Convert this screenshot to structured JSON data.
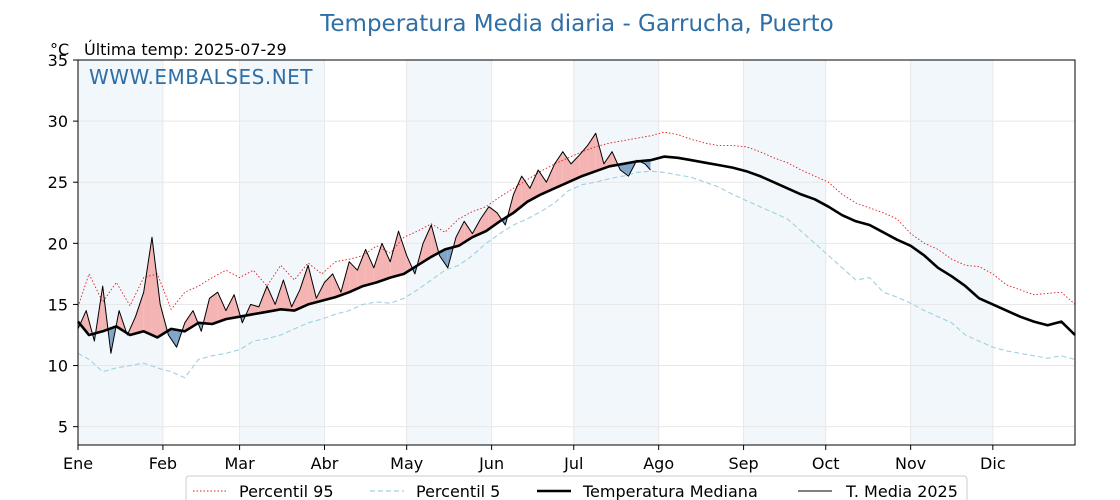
{
  "chart_data": {
    "type": "line",
    "title": "Temperatura Media diaria - Garrucha, Puerto",
    "unit_label": "°C",
    "last_temp_label": "Última temp: 2025-07-29",
    "watermark": "WWW.EMBALSES.NET",
    "x_axis_type": "day_of_year",
    "xlim": [
      1,
      365
    ],
    "ylim": [
      3.5,
      35
    ],
    "y_ticks": [
      5,
      10,
      15,
      20,
      25,
      30,
      35
    ],
    "x_ticks": [
      {
        "label": "Ene",
        "day": 1
      },
      {
        "label": "Feb",
        "day": 32
      },
      {
        "label": "Mar",
        "day": 60
      },
      {
        "label": "Abr",
        "day": 91
      },
      {
        "label": "May",
        "day": 121
      },
      {
        "label": "Jun",
        "day": 152
      },
      {
        "label": "Jul",
        "day": 182
      },
      {
        "label": "Ago",
        "day": 213
      },
      {
        "label": "Sep",
        "day": 244
      },
      {
        "label": "Oct",
        "day": 274
      },
      {
        "label": "Nov",
        "day": 305
      },
      {
        "label": "Dic",
        "day": 335
      }
    ],
    "shaded_month_bands": [
      [
        1,
        32
      ],
      [
        60,
        91
      ],
      [
        121,
        152
      ],
      [
        182,
        213
      ],
      [
        244,
        274
      ],
      [
        305,
        335
      ]
    ],
    "grid": true,
    "legend_position": "bottom",
    "series": [
      {
        "name": "Percentil 95",
        "style": "dotted",
        "color": "#e31a1c",
        "x": [
          1,
          5,
          10,
          15,
          20,
          25,
          30,
          35,
          40,
          45,
          50,
          55,
          60,
          65,
          70,
          75,
          80,
          85,
          90,
          95,
          100,
          105,
          110,
          115,
          120,
          125,
          130,
          135,
          140,
          145,
          150,
          155,
          160,
          165,
          170,
          175,
          180,
          185,
          190,
          195,
          200,
          205,
          210,
          215,
          220,
          225,
          230,
          235,
          240,
          245,
          250,
          255,
          260,
          265,
          270,
          275,
          280,
          285,
          290,
          295,
          300,
          305,
          310,
          315,
          320,
          325,
          330,
          335,
          340,
          345,
          350,
          355,
          360,
          365
        ],
        "y": [
          14.8,
          17.5,
          15.2,
          16.8,
          14.9,
          17.2,
          17.5,
          14.6,
          16.0,
          16.5,
          17.2,
          17.8,
          17.2,
          17.8,
          16.5,
          18.2,
          17.0,
          18.4,
          17.5,
          18.5,
          18.7,
          19.0,
          19.8,
          19.2,
          20.5,
          21.0,
          21.6,
          20.9,
          22.0,
          22.6,
          23.0,
          23.8,
          24.5,
          25.2,
          25.9,
          26.5,
          27.0,
          27.5,
          27.9,
          28.2,
          28.4,
          28.6,
          28.8,
          29.1,
          28.9,
          28.5,
          28.2,
          28.0,
          28.0,
          27.9,
          27.5,
          27.0,
          26.6,
          26.0,
          25.5,
          25.0,
          24.0,
          23.3,
          22.9,
          22.5,
          22.0,
          20.8,
          20.0,
          19.5,
          18.7,
          18.2,
          18.1,
          17.5,
          16.6,
          16.2,
          15.8,
          15.9,
          16.0,
          15.0
        ]
      },
      {
        "name": "Percentil 5",
        "style": "dashed",
        "color": "#9fd0e0",
        "x": [
          1,
          5,
          10,
          15,
          20,
          25,
          30,
          35,
          40,
          45,
          50,
          55,
          60,
          65,
          70,
          75,
          80,
          85,
          90,
          95,
          100,
          105,
          110,
          115,
          120,
          125,
          130,
          135,
          140,
          145,
          150,
          155,
          160,
          165,
          170,
          175,
          180,
          185,
          190,
          195,
          200,
          205,
          210,
          215,
          220,
          225,
          230,
          235,
          240,
          245,
          250,
          255,
          260,
          265,
          270,
          275,
          280,
          285,
          290,
          295,
          300,
          305,
          310,
          315,
          320,
          325,
          330,
          335,
          340,
          345,
          350,
          355,
          360,
          365
        ],
        "y": [
          11.0,
          10.5,
          9.5,
          9.8,
          10.0,
          10.2,
          9.8,
          9.5,
          9.0,
          10.5,
          10.8,
          11.0,
          11.3,
          12.0,
          12.2,
          12.5,
          13.0,
          13.5,
          13.8,
          14.2,
          14.5,
          15.0,
          15.2,
          15.1,
          15.5,
          16.2,
          17.0,
          17.8,
          18.2,
          19.0,
          20.0,
          20.8,
          21.5,
          22.0,
          22.6,
          23.3,
          24.3,
          24.8,
          25.0,
          25.3,
          25.5,
          25.8,
          25.9,
          25.8,
          25.6,
          25.4,
          25.0,
          24.6,
          24.0,
          23.5,
          23.0,
          22.5,
          22.0,
          21.0,
          20.0,
          19.0,
          18.0,
          17.0,
          17.2,
          16.0,
          15.6,
          15.1,
          14.5,
          14.0,
          13.5,
          12.5,
          12.0,
          11.5,
          11.2,
          11.0,
          10.8,
          10.6,
          10.8,
          10.5
        ]
      },
      {
        "name": "Temperatura Mediana",
        "style": "solid-thick",
        "color": "#000000",
        "x": [
          1,
          5,
          10,
          15,
          20,
          25,
          30,
          35,
          40,
          45,
          50,
          55,
          60,
          65,
          70,
          75,
          80,
          85,
          90,
          95,
          100,
          105,
          110,
          115,
          120,
          125,
          130,
          135,
          140,
          145,
          150,
          155,
          160,
          165,
          170,
          175,
          180,
          185,
          190,
          195,
          200,
          205,
          210,
          215,
          220,
          225,
          230,
          235,
          240,
          245,
          250,
          255,
          260,
          265,
          270,
          275,
          280,
          285,
          290,
          295,
          300,
          305,
          310,
          315,
          320,
          325,
          330,
          335,
          340,
          345,
          350,
          355,
          360,
          365
        ],
        "y": [
          13.6,
          12.5,
          12.8,
          13.2,
          12.5,
          12.8,
          12.3,
          13.0,
          12.8,
          13.5,
          13.4,
          13.8,
          14.0,
          14.2,
          14.4,
          14.6,
          14.5,
          15.0,
          15.3,
          15.6,
          16.0,
          16.5,
          16.8,
          17.2,
          17.5,
          18.2,
          18.9,
          19.5,
          19.8,
          20.5,
          21.0,
          21.8,
          22.5,
          23.4,
          24.0,
          24.5,
          25.0,
          25.5,
          25.9,
          26.3,
          26.5,
          26.7,
          26.8,
          27.1,
          27.0,
          26.8,
          26.6,
          26.4,
          26.2,
          25.9,
          25.5,
          25.0,
          24.5,
          24.0,
          23.6,
          23.0,
          22.3,
          21.8,
          21.5,
          20.9,
          20.3,
          19.8,
          19.0,
          18.0,
          17.3,
          16.5,
          15.5,
          15.0,
          14.5,
          14.0,
          13.6,
          13.3,
          13.6,
          12.5
        ]
      },
      {
        "name": "T. Media 2025",
        "style": "solid-thin",
        "color": "#000000",
        "x": [
          1,
          4,
          7,
          10,
          13,
          16,
          19,
          22,
          25,
          28,
          31,
          34,
          37,
          40,
          43,
          46,
          49,
          52,
          55,
          58,
          61,
          64,
          67,
          70,
          73,
          76,
          79,
          82,
          85,
          88,
          91,
          94,
          97,
          100,
          103,
          106,
          109,
          112,
          115,
          118,
          121,
          124,
          127,
          130,
          133,
          136,
          139,
          142,
          145,
          148,
          151,
          154,
          157,
          160,
          163,
          166,
          169,
          172,
          175,
          178,
          181,
          184,
          187,
          190,
          193,
          196,
          199,
          202,
          205,
          208,
          210
        ],
        "y": [
          13.0,
          14.5,
          12.0,
          16.5,
          11.0,
          14.5,
          12.5,
          14.0,
          16.0,
          20.5,
          15.0,
          12.5,
          11.5,
          13.5,
          14.5,
          12.8,
          15.5,
          16.0,
          14.5,
          15.8,
          13.5,
          15.0,
          14.8,
          16.5,
          15.0,
          17.0,
          14.8,
          16.2,
          18.2,
          15.5,
          16.8,
          17.5,
          16.0,
          18.5,
          17.8,
          19.5,
          18.0,
          20.0,
          18.5,
          21.0,
          19.0,
          17.5,
          20.0,
          21.5,
          19.0,
          18.0,
          20.5,
          21.8,
          20.8,
          22.0,
          23.0,
          22.5,
          21.5,
          24.0,
          25.5,
          24.5,
          26.0,
          25.0,
          26.5,
          27.5,
          26.5,
          27.2,
          28.0,
          29.0,
          26.5,
          27.5,
          26.0,
          25.5,
          26.8,
          26.5,
          26.0
        ]
      }
    ]
  }
}
